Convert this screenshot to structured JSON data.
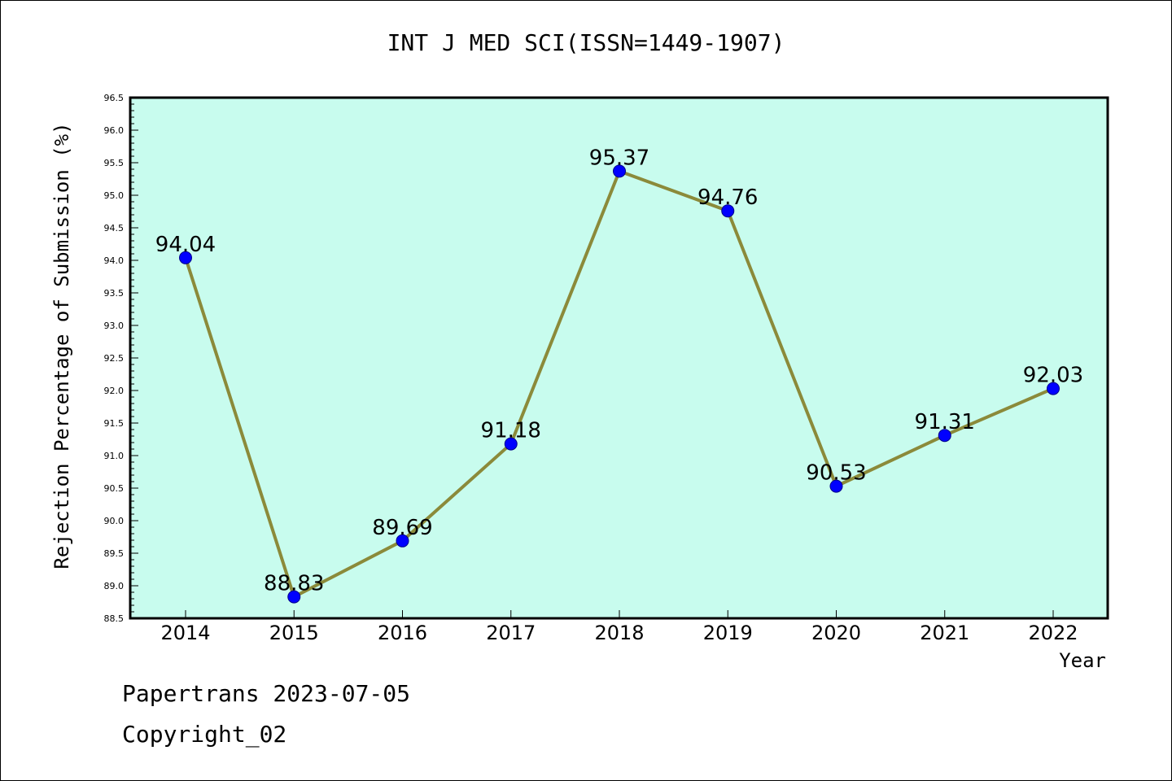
{
  "chart_data": {
    "type": "line",
    "title": "INT J MED SCI(ISSN=1449-1907)",
    "xlabel": "Year",
    "ylabel": "Rejection Percentage of Submission (%)",
    "categories": [
      "2014",
      "2015",
      "2016",
      "2017",
      "2018",
      "2019",
      "2020",
      "2021",
      "2022"
    ],
    "values": [
      94.04,
      88.83,
      89.69,
      91.18,
      95.37,
      94.76,
      90.53,
      91.31,
      92.03
    ],
    "data_labels": [
      "94.04",
      "88.83",
      "89.69",
      "91.18",
      "95.37",
      "94.76",
      "90.53",
      "91.31",
      "92.03"
    ],
    "ylim": [
      88.5,
      96.5
    ],
    "yticks": [
      "88.5",
      "89.0",
      "89.5",
      "90.0",
      "90.5",
      "91.0",
      "91.5",
      "92.0",
      "92.5",
      "93.0",
      "93.5",
      "94.0",
      "94.5",
      "95.0",
      "95.5",
      "96.0",
      "96.5"
    ],
    "grid": false,
    "colors": {
      "plot_background": "#c8fcee",
      "line": "#8b8a3a",
      "marker": "#0000ff",
      "marker_edge": "#00008b"
    }
  },
  "footer": {
    "line1": "Papertrans 2023-07-05",
    "line2": "Copyright_02"
  }
}
